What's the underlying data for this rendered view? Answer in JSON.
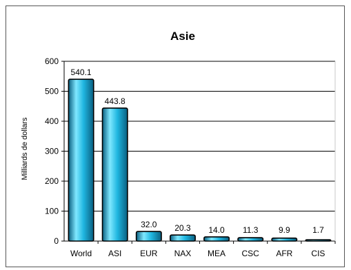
{
  "chart_data": {
    "type": "bar",
    "title": "Asie",
    "xlabel": "",
    "ylabel": "Milliards de dollars",
    "categories": [
      "World",
      "ASI",
      "EUR",
      "NAX",
      "MEA",
      "CSC",
      "AFR",
      "CIS"
    ],
    "values": [
      540.1,
      443.8,
      32.0,
      20.3,
      14.0,
      11.3,
      9.9,
      1.7
    ],
    "data_labels": [
      "540.1",
      "443.8",
      "32.0",
      "20.3",
      "14.0",
      "11.3",
      "9.9",
      "1.7"
    ],
    "ylim": [
      0,
      600
    ],
    "yticks": [
      0,
      100,
      200,
      300,
      400,
      500,
      600
    ],
    "grid": true,
    "legend": "none",
    "colors": {
      "bar_light": "#7fe8ff",
      "bar_mid": "#1fb6e0",
      "bar_dark": "#0a5f80",
      "bar_outline": "#000000",
      "plot_background": "#ffffff",
      "grid": "#000000"
    }
  }
}
